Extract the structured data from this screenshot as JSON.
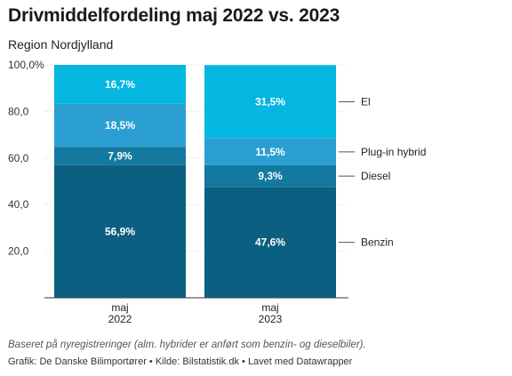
{
  "title": "Drivmiddelfordeling maj 2022 vs. 2023",
  "subtitle": "Region Nordjylland",
  "footnote": "Baseret på nyregistreringer (alm. hybrider er anført som benzin- og dieselbiler).",
  "source": "Grafik: De Danske Bilimportører • Kilde: Bilstatistik.dk • Lavet med Datawrapper",
  "chart_data": {
    "type": "bar",
    "stacked": true,
    "categories": [
      [
        "maj",
        "2022"
      ],
      [
        "maj",
        "2023"
      ]
    ],
    "ylim": [
      0,
      100
    ],
    "yticks": [
      {
        "value": 100,
        "label": "100,0%"
      },
      {
        "value": 80,
        "label": "80,0"
      },
      {
        "value": 60,
        "label": "60,0"
      },
      {
        "value": 40,
        "label": "40,0"
      },
      {
        "value": 20,
        "label": "20,0"
      }
    ],
    "legend_position": "right",
    "series": [
      {
        "name": "Benzin",
        "color": "#0b5f80",
        "values": [
          56.9,
          47.6
        ],
        "labels": [
          "56,9%",
          "47,6%"
        ]
      },
      {
        "name": "Diesel",
        "color": "#13799f",
        "values": [
          7.9,
          9.3
        ],
        "labels": [
          "7,9%",
          "9,3%"
        ]
      },
      {
        "name": "Plug-in hybrid",
        "color": "#2b9fd1",
        "values": [
          18.5,
          11.5
        ],
        "labels": [
          "18,5%",
          "11,5%"
        ]
      },
      {
        "name": "El",
        "color": "#04b7e0",
        "values": [
          16.7,
          31.5
        ],
        "labels": [
          "16,7%",
          "31,5%"
        ]
      }
    ]
  }
}
